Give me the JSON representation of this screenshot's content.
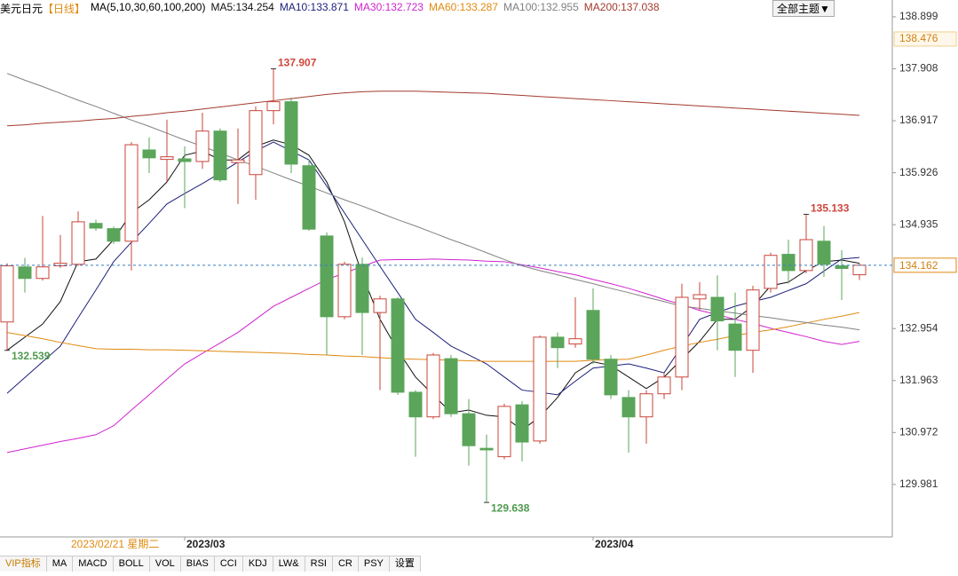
{
  "header": {
    "symbol": "美元日元",
    "period": "【日线】",
    "ma_label": "MA(5,10,30,60,100,200)",
    "theme_button": "全部主题▼"
  },
  "chart_data": {
    "type": "candlestick",
    "categories": [
      null,
      null,
      null,
      null,
      null,
      null,
      null,
      null,
      null,
      null,
      "2023/03",
      null,
      null,
      null,
      null,
      null,
      null,
      null,
      null,
      null,
      null,
      null,
      null,
      null,
      null,
      null,
      null,
      null,
      null,
      null,
      null,
      null,
      null,
      "2023/04",
      null,
      null,
      null,
      null,
      null,
      null,
      null,
      null,
      null,
      null,
      null,
      null,
      null,
      null,
      null
    ],
    "cursor_date": "2023/02/21 星期二",
    "open": [
      133.08,
      134.13,
      133.91,
      134.15,
      134.18,
      134.96,
      134.86,
      134.62,
      136.36,
      136.18,
      136.19,
      136.14,
      136.72,
      136.12,
      135.89,
      137.11,
      137.28,
      136.06,
      134.72,
      133.18,
      134.18,
      133.26,
      133.52,
      131.74,
      131.27,
      132.38,
      131.33,
      130.67,
      130.51,
      131.5,
      130.81,
      132.79,
      132.66,
      133.3,
      132.37,
      131.64,
      131.27,
      131.71,
      132.03,
      133.52,
      133.55,
      133.04,
      132.54,
      133.72,
      134.37,
      134.06,
      134.62,
      134.15,
      133.98
    ],
    "high": [
      134.2,
      134.3,
      135.1,
      134.74,
      135.19,
      135.03,
      134.9,
      136.51,
      136.6,
      136.94,
      136.43,
      137.07,
      136.77,
      136.77,
      137.19,
      137.907,
      137.36,
      136.18,
      134.79,
      134.23,
      134.31,
      133.58,
      133.55,
      131.78,
      132.49,
      132.45,
      131.61,
      130.93,
      131.52,
      131.57,
      132.82,
      132.88,
      133.55,
      133.72,
      132.45,
      131.78,
      131.78,
      132.11,
      133.81,
      133.84,
      133.97,
      133.64,
      133.77,
      134.4,
      134.65,
      135.133,
      134.91,
      134.45,
      134.2
    ],
    "low": [
      132.539,
      133.64,
      133.87,
      134.11,
      134.15,
      134.82,
      134.57,
      134.06,
      135.92,
      135.75,
      135.25,
      136.0,
      135.75,
      135.33,
      135.41,
      136.85,
      135.92,
      134.82,
      132.45,
      133.13,
      132.45,
      131.78,
      131.69,
      130.51,
      131.23,
      131.27,
      130.34,
      129.638,
      130.46,
      130.42,
      130.76,
      132.2,
      132.59,
      132.28,
      131.61,
      130.59,
      130.76,
      131.61,
      131.78,
      133.3,
      132.54,
      132.03,
      132.11,
      133.64,
      133.81,
      134.01,
      133.94,
      133.5,
      133.88
    ],
    "close": [
      134.15,
      133.91,
      134.13,
      134.2,
      134.99,
      134.87,
      134.62,
      136.46,
      136.21,
      136.23,
      136.14,
      136.72,
      135.79,
      136.17,
      137.11,
      137.28,
      136.09,
      134.85,
      133.18,
      134.18,
      133.26,
      133.52,
      131.74,
      131.27,
      132.45,
      131.33,
      130.72,
      130.64,
      131.47,
      130.79,
      132.79,
      132.59,
      132.76,
      132.37,
      131.69,
      131.27,
      131.71,
      132.03,
      133.55,
      133.6,
      133.1,
      132.54,
      133.69,
      134.35,
      134.06,
      134.65,
      134.18,
      134.1,
      134.162
    ],
    "up_color": "#c8443a",
    "down_color": "#5aa55a",
    "series": [
      {
        "name": "MA5:134.254",
        "color": "#111111",
        "values": [
          132.54,
          132.79,
          133.04,
          133.47,
          134.23,
          134.28,
          134.65,
          135.16,
          135.41,
          135.75,
          136.26,
          136.34,
          136.17,
          136.17,
          136.43,
          136.55,
          136.46,
          136.26,
          135.75,
          134.99,
          133.98,
          133.13,
          132.54,
          132.03,
          131.69,
          131.35,
          131.4,
          131.3,
          131.27,
          131.02,
          131.27,
          131.64,
          132.11,
          132.32,
          132.25,
          132.03,
          131.81,
          132.03,
          132.37,
          132.71,
          133.13,
          133.13,
          133.38,
          133.77,
          133.84,
          134.06,
          134.23,
          134.26,
          134.2
        ]
      },
      {
        "name": "MA10:133.871",
        "color": "#1c1f7a",
        "values": [
          131.72,
          132.02,
          132.32,
          132.62,
          133.16,
          133.69,
          134.23,
          134.6,
          134.96,
          135.33,
          135.53,
          135.72,
          135.92,
          136.13,
          136.34,
          136.51,
          136.34,
          136.17,
          135.67,
          135.16,
          134.65,
          134.14,
          133.64,
          133.13,
          132.88,
          132.62,
          132.45,
          132.28,
          132.03,
          131.78,
          131.74,
          131.69,
          131.95,
          132.2,
          132.24,
          132.28,
          132.2,
          132.11,
          132.62,
          133.13,
          133.26,
          133.38,
          133.47,
          133.55,
          133.68,
          133.81,
          134.05,
          134.28,
          134.31
        ]
      },
      {
        "name": "MA30:132.723",
        "color": "#d024d0",
        "values": [
          130.59,
          130.66,
          130.73,
          130.8,
          130.86,
          130.93,
          131.1,
          131.4,
          131.69,
          131.99,
          132.28,
          132.48,
          132.68,
          132.88,
          133.13,
          133.38,
          133.55,
          133.72,
          133.89,
          134.01,
          134.14,
          134.26,
          134.27,
          134.27,
          134.28,
          134.27,
          134.26,
          134.24,
          134.23,
          134.17,
          134.11,
          134.04,
          133.98,
          133.89,
          133.81,
          133.72,
          133.62,
          133.51,
          133.41,
          133.3,
          133.22,
          133.13,
          133.05,
          132.96,
          132.88,
          132.8,
          132.71,
          132.65,
          132.71
        ]
      },
      {
        "name": "MA60:133.287",
        "color": "#e08a10",
        "values": [
          132.88,
          132.82,
          132.76,
          132.69,
          132.63,
          132.57,
          132.56,
          132.56,
          132.55,
          132.55,
          132.54,
          132.53,
          132.52,
          132.51,
          132.5,
          132.49,
          132.48,
          132.46,
          132.45,
          132.43,
          132.42,
          132.4,
          132.38,
          132.37,
          132.36,
          132.35,
          132.34,
          132.33,
          132.33,
          132.33,
          132.33,
          132.33,
          132.33,
          132.35,
          132.36,
          132.37,
          132.45,
          132.54,
          132.62,
          132.69,
          132.75,
          132.82,
          132.88,
          132.93,
          132.99,
          133.06,
          133.13,
          133.19,
          133.26
        ]
      },
      {
        "name": "MA100:132.955",
        "color": "#808080",
        "values": [
          137.82,
          137.69,
          137.57,
          137.44,
          137.31,
          137.19,
          137.06,
          136.93,
          136.81,
          136.68,
          136.55,
          136.43,
          136.3,
          136.17,
          136.05,
          135.92,
          135.79,
          135.67,
          135.54,
          135.41,
          135.29,
          135.16,
          135.03,
          134.91,
          134.78,
          134.65,
          134.53,
          134.4,
          134.27,
          134.15,
          134.06,
          133.98,
          133.89,
          133.81,
          133.72,
          133.64,
          133.55,
          133.47,
          133.38,
          133.34,
          133.29,
          133.25,
          133.2,
          133.16,
          133.11,
          133.07,
          133.02,
          132.98,
          132.93
        ]
      },
      {
        "name": "MA200:137.038",
        "color": "#a33a2c",
        "values": [
          136.82,
          136.84,
          136.87,
          136.89,
          136.91,
          136.94,
          136.96,
          137.0,
          137.03,
          137.07,
          137.1,
          137.14,
          137.18,
          137.22,
          137.26,
          137.3,
          137.34,
          137.38,
          137.42,
          137.45,
          137.47,
          137.48,
          137.48,
          137.48,
          137.47,
          137.46,
          137.45,
          137.44,
          137.42,
          137.4,
          137.38,
          137.36,
          137.34,
          137.32,
          137.3,
          137.28,
          137.26,
          137.24,
          137.22,
          137.2,
          137.18,
          137.16,
          137.14,
          137.12,
          137.1,
          137.08,
          137.06,
          137.04,
          137.02
        ]
      }
    ],
    "price_marker": 138.476,
    "ylim": [
      128.98,
      139.22
    ],
    "yticks": [
      138.899,
      137.908,
      136.917,
      135.926,
      134.935,
      132.954,
      131.963,
      130.972,
      129.981
    ],
    "annotations": [
      {
        "path": "high",
        "index": 15,
        "color": "#d0463c"
      },
      {
        "path": "high",
        "index": 45,
        "color": "#d0463c"
      },
      {
        "path": "low",
        "index": 27,
        "color": "#4f9a4f"
      },
      {
        "path": "low",
        "index": 0,
        "color": "#4f9a4f"
      }
    ]
  },
  "tabs": [
    "VIP指标",
    "MA",
    "MACD",
    "BOLL",
    "VOL",
    "BIAS",
    "CCI",
    "KDJ",
    "LW&",
    "RSI",
    "CR",
    "PSY",
    "设置"
  ]
}
